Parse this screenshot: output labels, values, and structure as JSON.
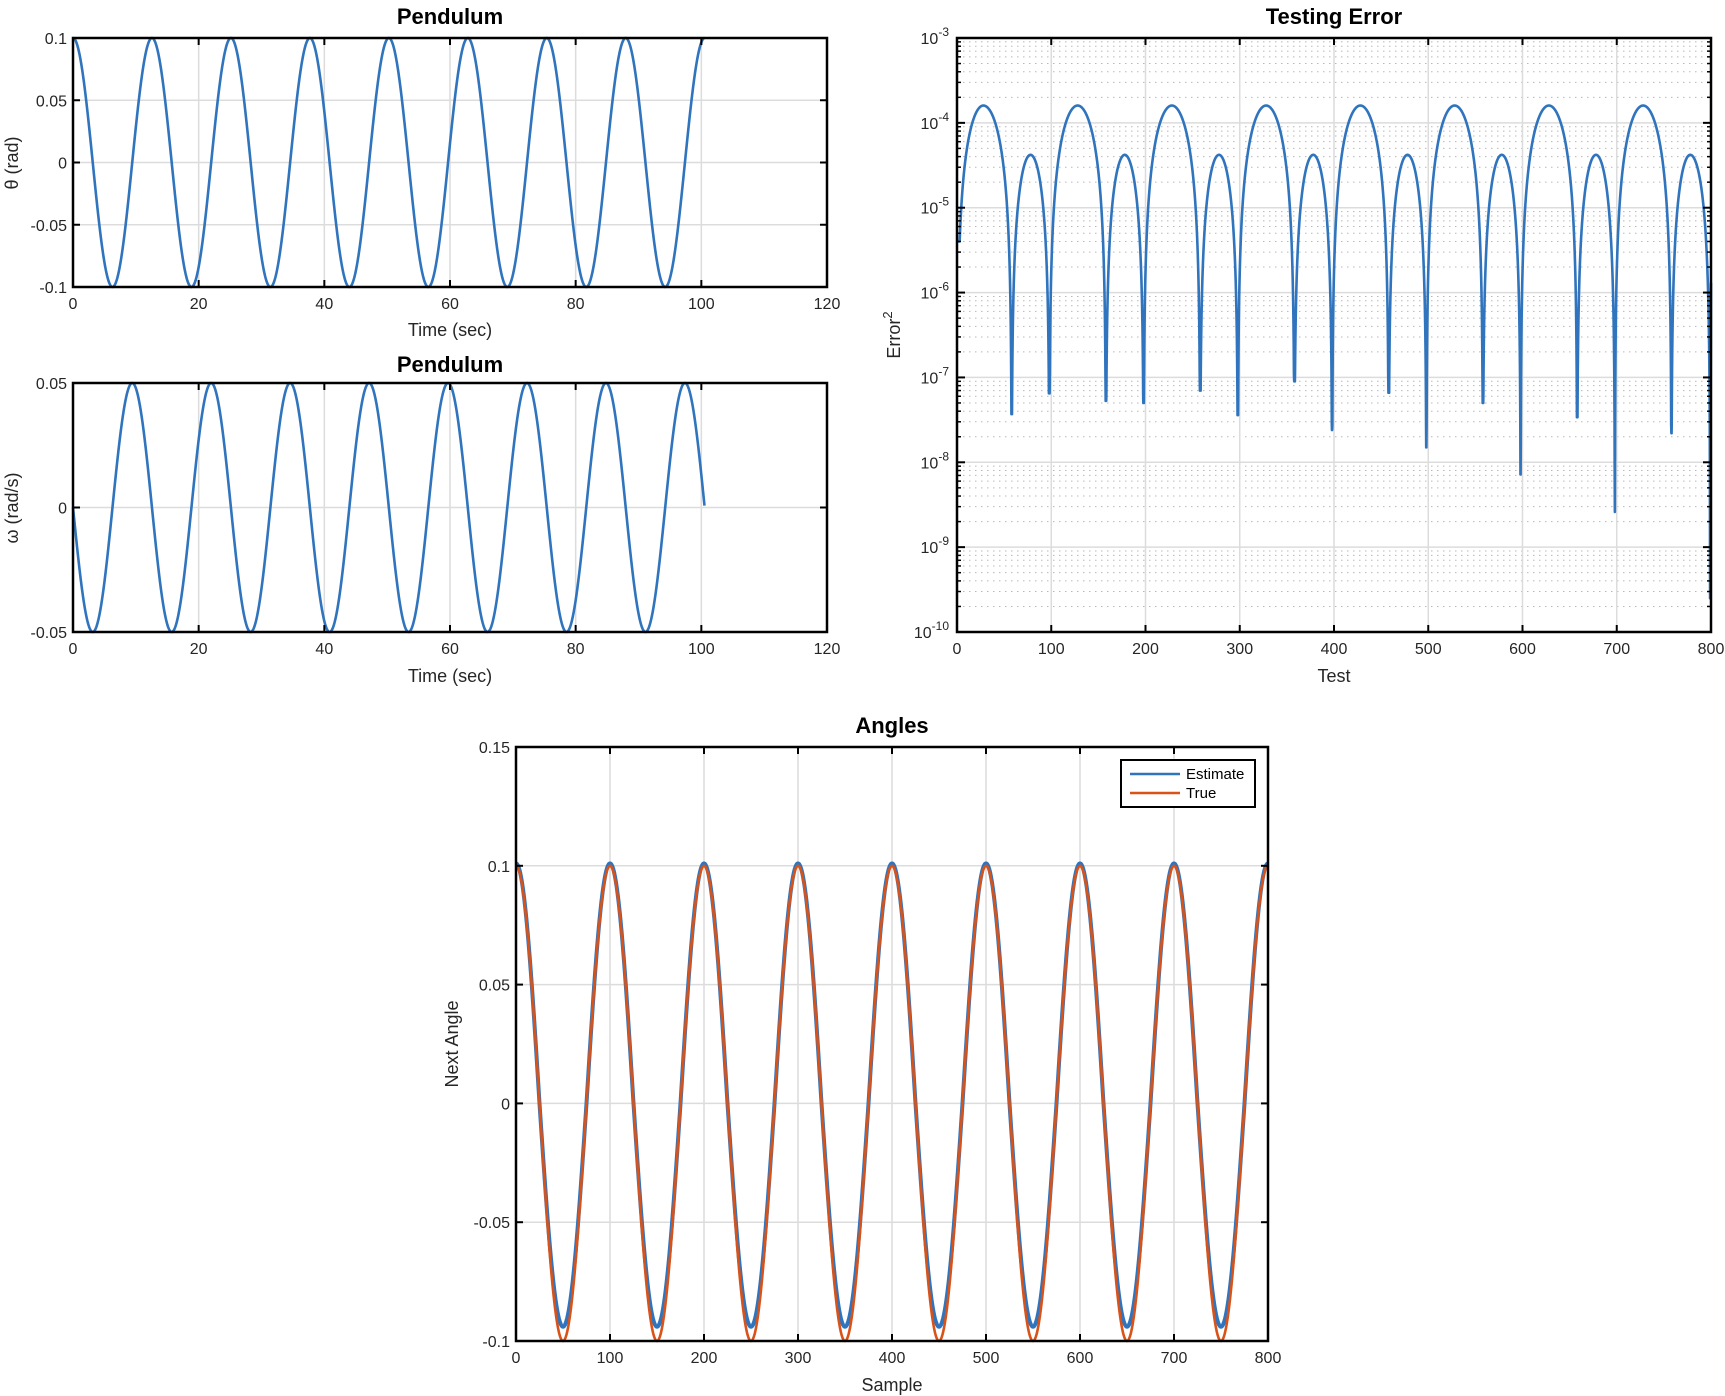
{
  "colors": {
    "series_blue": "#2f74bd",
    "series_orange": "#d95319",
    "grid": "#dcdcdc",
    "minor_grid": "#b8b8b8",
    "axis": "#000000"
  },
  "chart_data": [
    {
      "id": "pendulum-theta",
      "type": "line",
      "title": "Pendulum",
      "xlabel": "Time (sec)",
      "ylabel": "θ (rad)",
      "xlim": [
        0,
        120
      ],
      "ylim": [
        -0.1,
        0.1
      ],
      "xticks": [
        0,
        20,
        40,
        60,
        80,
        100,
        120
      ],
      "yticks": [
        -0.1,
        -0.05,
        0,
        0.05,
        0.1
      ],
      "ytick_labels": [
        "-0.1",
        "-0.05",
        "0",
        "0.05",
        "0.1"
      ],
      "grid": true,
      "series": [
        {
          "name": "theta",
          "function": "amplitude*cos(omega*t)",
          "amplitude": 0.1,
          "omega": 0.5,
          "x_range": [
            0,
            100.5
          ],
          "color": "#2f74bd"
        }
      ]
    },
    {
      "id": "pendulum-omega",
      "type": "line",
      "title": "Pendulum",
      "xlabel": "Time (sec)",
      "ylabel": "ω (rad/s)",
      "xlim": [
        0,
        120
      ],
      "ylim": [
        -0.05,
        0.05
      ],
      "xticks": [
        0,
        20,
        40,
        60,
        80,
        100,
        120
      ],
      "yticks": [
        -0.05,
        0,
        0.05
      ],
      "ytick_labels": [
        "-0.05",
        "0",
        "0.05"
      ],
      "grid": true,
      "series": [
        {
          "name": "omega",
          "function": "-amplitude*sin(omega*t)",
          "amplitude": 0.05,
          "omega": 0.5,
          "x_range": [
            0,
            100.5
          ],
          "color": "#2f74bd"
        }
      ]
    },
    {
      "id": "testing-error",
      "type": "line",
      "title": "Testing Error",
      "xlabel": "Test",
      "ylabel": "Error²",
      "xlim": [
        0,
        800
      ],
      "ylim": [
        1e-10,
        0.001
      ],
      "yscale": "log",
      "xticks": [
        0,
        100,
        200,
        300,
        400,
        500,
        600,
        700,
        800
      ],
      "yticks_exponents": [
        -10,
        -9,
        -8,
        -7,
        -6,
        -5,
        -4,
        -3
      ],
      "grid": true,
      "minor_grid": true,
      "major_peaks": {
        "x": [
          28,
          128,
          228,
          328,
          428,
          528,
          628,
          728
        ],
        "value": 0.00016
      },
      "minor_peaks": {
        "x": [
          78,
          178,
          278,
          378,
          478,
          578,
          678,
          778
        ],
        "value": 4.2e-05
      },
      "dips": [
        {
          "x": 58,
          "value": 3.7e-08
        },
        {
          "x": 98,
          "value": 6.5e-08
        },
        {
          "x": 158,
          "value": 5.3e-08
        },
        {
          "x": 198,
          "value": 5e-08
        },
        {
          "x": 258,
          "value": 7e-08
        },
        {
          "x": 298,
          "value": 3.6e-08
        },
        {
          "x": 358,
          "value": 9e-08
        },
        {
          "x": 398,
          "value": 2.4e-08
        },
        {
          "x": 458,
          "value": 6.6e-08
        },
        {
          "x": 498,
          "value": 1.5e-08
        },
        {
          "x": 558,
          "value": 5e-08
        },
        {
          "x": 598,
          "value": 7.2e-09
        },
        {
          "x": 658,
          "value": 3.4e-08
        },
        {
          "x": 698,
          "value": 2.6e-09
        },
        {
          "x": 758,
          "value": 2.2e-08
        },
        {
          "x": 799,
          "value": 2.5e-10
        }
      ],
      "start_value": 4e-06,
      "end_value": 1.3e-06,
      "series": [
        {
          "name": "Error^2",
          "color": "#2f74bd"
        }
      ]
    },
    {
      "id": "angles",
      "type": "line",
      "title": "Angles",
      "xlabel": "Sample",
      "ylabel": "Next Angle",
      "xlim": [
        0,
        800
      ],
      "ylim": [
        -0.1,
        0.15
      ],
      "xticks": [
        0,
        100,
        200,
        300,
        400,
        500,
        600,
        700,
        800
      ],
      "yticks": [
        -0.1,
        -0.05,
        0,
        0.05,
        0.1,
        0.15
      ],
      "ytick_labels": [
        "-0.1",
        "-0.05",
        "0",
        "0.05",
        "0.1",
        "0.15"
      ],
      "grid": true,
      "legend": {
        "position": "northeast",
        "entries": [
          "Estimate",
          "True"
        ]
      },
      "series": [
        {
          "name": "Estimate",
          "function": "cos wave, period 100 samples, peak 0.101, trough -0.094",
          "period": 100,
          "max": 0.101,
          "min": -0.094,
          "color": "#2f74bd"
        },
        {
          "name": "True",
          "function": "0.1*cos(2*pi*x/100)",
          "period": 100,
          "max": 0.1,
          "min": -0.1,
          "color": "#d95319"
        }
      ]
    }
  ]
}
